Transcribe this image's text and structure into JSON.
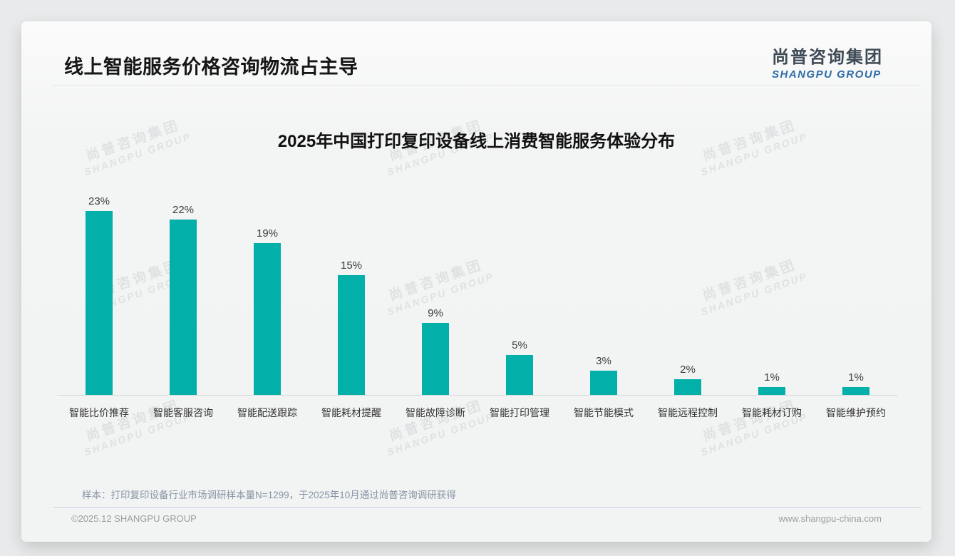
{
  "page": {
    "title": "线上智能服务价格咨询物流占主导",
    "logo": {
      "cn": "尚普咨询集团",
      "en": "SHANGPU GROUP"
    },
    "watermark": {
      "cn": "尚普咨询集团",
      "en": "SHANGPU GROUP"
    },
    "note": "样本：打印复印设备行业市场调研样本量N=1299，于2025年10月通过尚普咨询调研获得",
    "footer_left": "©2025.12 SHANGPU GROUP",
    "footer_right": "www.shangpu-china.com"
  },
  "chart_data": {
    "type": "bar",
    "title": "2025年中国打印复印设备线上消费智能服务体验分布",
    "categories": [
      "智能比价推荐",
      "智能客服咨询",
      "智能配送跟踪",
      "智能耗材提醒",
      "智能故障诊断",
      "智能打印管理",
      "智能节能模式",
      "智能远程控制",
      "智能耗材订购",
      "智能维护预约"
    ],
    "values": [
      23,
      22,
      19,
      15,
      9,
      5,
      3,
      2,
      1,
      1
    ],
    "unit": "%",
    "data_labels": true,
    "bar_color": "#03AFA9",
    "value_label_color": "#3c3c3c",
    "xlabel": "",
    "ylabel": "",
    "ylim": [
      0,
      25.7
    ],
    "grid": false,
    "legend": false
  }
}
